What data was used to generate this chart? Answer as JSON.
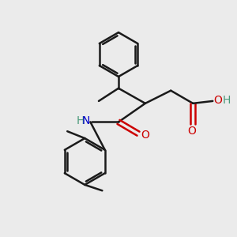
{
  "background_color": "#ebebeb",
  "bond_color": "#1a1a1a",
  "bond_width": 1.8,
  "N_color": "#0000cc",
  "O_color": "#cc0000",
  "H_color": "#4a9a7a",
  "text_fontsize": 10,
  "figsize": [
    3.0,
    3.0
  ],
  "dpi": 100,
  "xlim": [
    0,
    10
  ],
  "ylim": [
    0,
    10
  ]
}
